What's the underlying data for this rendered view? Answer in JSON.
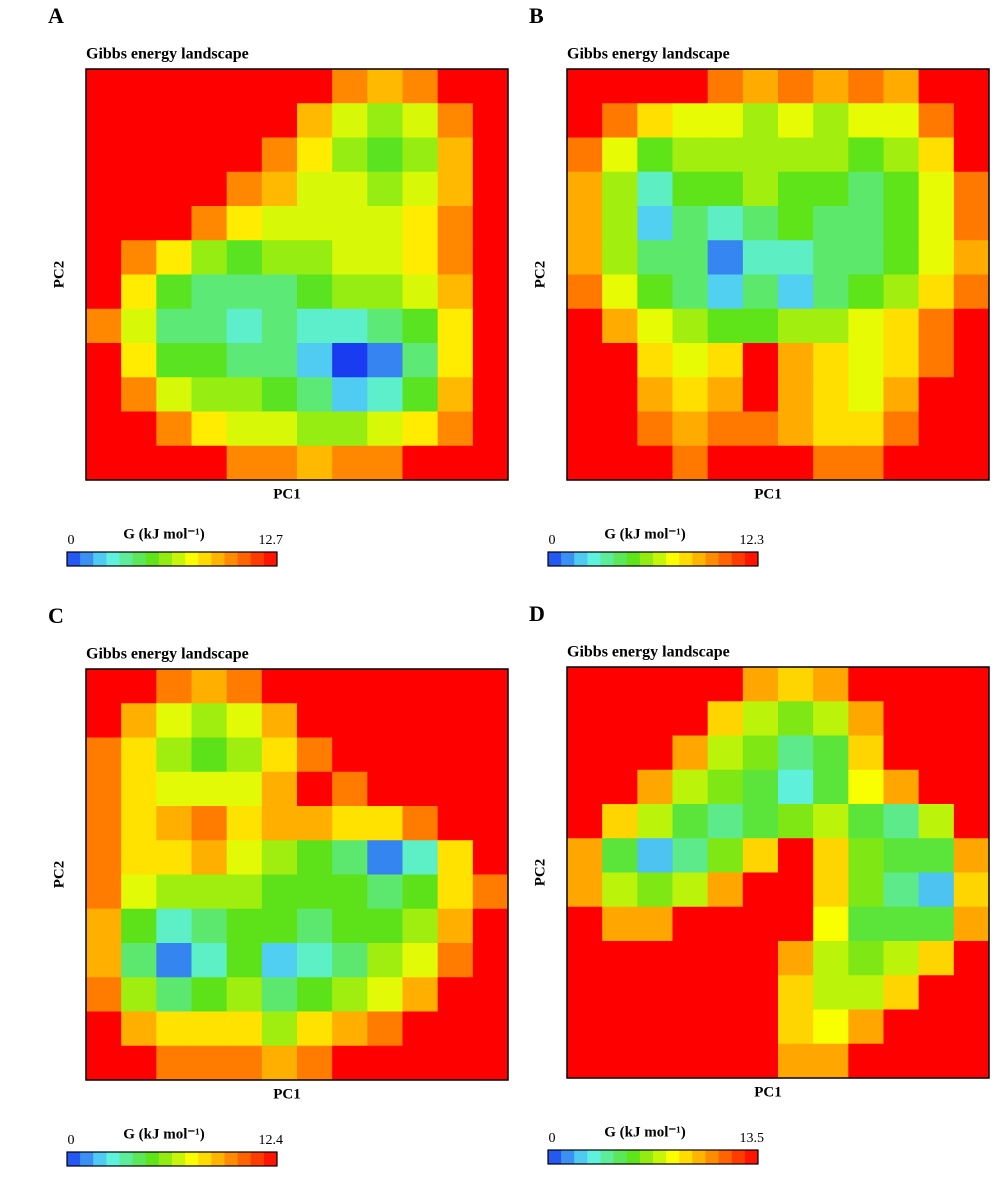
{
  "chart_data": [
    {
      "type": "heatmap",
      "panel_label": "A",
      "title": "Gibbs energy landscape",
      "x_label": "PC1",
      "y_label": "PC2",
      "colorbar_label": "G (kJ mol⁻¹)",
      "zlim": [
        0,
        12.7
      ],
      "zticks": [
        0,
        12.7
      ],
      "colormap": [
        "#1a3cf0",
        "#5ef2f2",
        "#5ae21a",
        "#ffff00",
        "#ff8000",
        "#ff0000"
      ],
      "z": [
        [
          12.7,
          12.7,
          12.7,
          12.7,
          12.7,
          12.7,
          12.7,
          10,
          9,
          10,
          12.7,
          12.7
        ],
        [
          12.7,
          12.7,
          12.7,
          12.7,
          12.7,
          12.7,
          9,
          7,
          6,
          7,
          10,
          12.7
        ],
        [
          12.7,
          12.7,
          12.7,
          12.7,
          12.7,
          10,
          8,
          6,
          5,
          6,
          9,
          12.7
        ],
        [
          12.7,
          12.7,
          12.7,
          12.7,
          10,
          9,
          7,
          7,
          6,
          7,
          9,
          12.7
        ],
        [
          12.7,
          12.7,
          12.7,
          10,
          8,
          7,
          7,
          7,
          7,
          8,
          10,
          12.7
        ],
        [
          12.7,
          10,
          8,
          6,
          5,
          6,
          6,
          7,
          7,
          8,
          10,
          12.7
        ],
        [
          12.7,
          8,
          5,
          4,
          4,
          4,
          5,
          6,
          6,
          7,
          9,
          12.7
        ],
        [
          10,
          7,
          4,
          4,
          3,
          4,
          3,
          3,
          4,
          5,
          8,
          12.7
        ],
        [
          12.7,
          8,
          5,
          5,
          4,
          4,
          2,
          0,
          1,
          4,
          8,
          12.7
        ],
        [
          12.7,
          10,
          7,
          6,
          6,
          5,
          4,
          2,
          3,
          5,
          9,
          12.7
        ],
        [
          12.7,
          12.7,
          10,
          8,
          7,
          7,
          6,
          6,
          7,
          8,
          10,
          12.7
        ],
        [
          12.7,
          12.7,
          12.7,
          12.7,
          10,
          10,
          9,
          10,
          10,
          12.7,
          12.7,
          12.7
        ]
      ]
    },
    {
      "type": "heatmap",
      "panel_label": "B",
      "title": "Gibbs energy landscape",
      "x_label": "PC1",
      "y_label": "PC2",
      "colorbar_label": "G (kJ mol⁻¹)",
      "zlim": [
        0,
        12.3
      ],
      "zticks": [
        0,
        12.3
      ],
      "colormap": [
        "#1a3cf0",
        "#5ef2f2",
        "#5ae21a",
        "#ffff00",
        "#ff8000",
        "#ff0000"
      ],
      "z": [
        [
          12.3,
          12.3,
          12.3,
          12.3,
          10,
          9,
          10,
          9,
          10,
          9,
          12.3,
          12.3
        ],
        [
          12.3,
          10,
          8,
          7,
          7,
          6,
          7,
          6,
          7,
          7,
          10,
          12.3
        ],
        [
          10,
          7,
          5,
          6,
          6,
          6,
          6,
          6,
          5,
          6,
          8,
          12.3
        ],
        [
          9,
          6,
          3,
          5,
          5,
          6,
          5,
          5,
          4,
          5,
          7,
          10
        ],
        [
          9,
          6,
          2,
          4,
          3,
          4,
          5,
          4,
          4,
          5,
          7,
          10
        ],
        [
          9,
          6,
          4,
          4,
          1,
          3,
          3,
          4,
          4,
          5,
          7,
          9
        ],
        [
          10,
          7,
          5,
          4,
          2,
          4,
          2,
          4,
          5,
          6,
          8,
          10
        ],
        [
          12.3,
          9,
          7,
          6,
          5,
          5,
          6,
          6,
          7,
          8,
          10,
          12.3
        ],
        [
          12.3,
          12.3,
          8,
          7,
          8,
          12.3,
          9,
          8,
          7,
          8,
          10,
          12.3
        ],
        [
          12.3,
          12.3,
          9,
          8,
          9,
          12.3,
          9,
          8,
          7,
          9,
          12.3,
          12.3
        ],
        [
          12.3,
          12.3,
          10,
          9,
          10,
          10,
          9,
          8,
          8,
          10,
          12.3,
          12.3
        ],
        [
          12.3,
          12.3,
          12.3,
          10,
          12.3,
          12.3,
          12.3,
          10,
          10,
          12.3,
          12.3,
          12.3
        ]
      ]
    },
    {
      "type": "heatmap",
      "panel_label": "C",
      "title": "Gibbs energy landscape",
      "x_label": "PC1",
      "y_label": "PC2",
      "colorbar_label": "G (kJ mol⁻¹)",
      "zlim": [
        0,
        12.4
      ],
      "zticks": [
        0,
        12.4
      ],
      "colormap": [
        "#1a3cf0",
        "#5ef2f2",
        "#5ae21a",
        "#ffff00",
        "#ff8000",
        "#ff0000"
      ],
      "z": [
        [
          12.4,
          12.4,
          10,
          9,
          10,
          12.4,
          12.4,
          12.4,
          12.4,
          12.4,
          12.4,
          12.4
        ],
        [
          12.4,
          9,
          7,
          6,
          7,
          9,
          12.4,
          12.4,
          12.4,
          12.4,
          12.4,
          12.4
        ],
        [
          10,
          8,
          6,
          5,
          6,
          8,
          10,
          12.4,
          12.4,
          12.4,
          12.4,
          12.4
        ],
        [
          10,
          8,
          7,
          7,
          7,
          9,
          12.4,
          10,
          12.4,
          12.4,
          12.4,
          12.4
        ],
        [
          10,
          8,
          9,
          10,
          8,
          9,
          9,
          8,
          8,
          10,
          12.4,
          12.4
        ],
        [
          10,
          8,
          8,
          9,
          7,
          6,
          5,
          4,
          1,
          3,
          8,
          12.4
        ],
        [
          10,
          7,
          6,
          6,
          6,
          5,
          5,
          5,
          4,
          5,
          8,
          10
        ],
        [
          9,
          5,
          3,
          4,
          5,
          5,
          4,
          5,
          5,
          6,
          9,
          12.4
        ],
        [
          9,
          4,
          1,
          3,
          5,
          2,
          3,
          4,
          6,
          7,
          10,
          12.4
        ],
        [
          10,
          6,
          4,
          5,
          6,
          4,
          5,
          6,
          7,
          9,
          12.4,
          12.4
        ],
        [
          12.4,
          9,
          8,
          8,
          8,
          6,
          8,
          9,
          10,
          12.4,
          12.4,
          12.4
        ],
        [
          12.4,
          12.4,
          10,
          10,
          10,
          9,
          10,
          12.4,
          12.4,
          12.4,
          12.4,
          12.4
        ]
      ]
    },
    {
      "type": "heatmap",
      "panel_label": "D",
      "title": "Gibbs energy landscape",
      "x_label": "PC1",
      "y_label": "PC2",
      "colorbar_label": "G (kJ mol⁻¹)",
      "zlim": [
        0,
        13.5
      ],
      "zticks": [
        0,
        13.5
      ],
      "colormap": [
        "#1a3cf0",
        "#5ef2f2",
        "#5ae21a",
        "#ffff00",
        "#ff8000",
        "#ff0000"
      ],
      "z": [
        [
          13.5,
          13.5,
          13.5,
          13.5,
          13.5,
          10,
          9,
          10,
          13.5,
          13.5,
          13.5,
          13.5
        ],
        [
          13.5,
          13.5,
          13.5,
          13.5,
          9,
          7,
          6,
          7,
          10,
          13.5,
          13.5,
          13.5
        ],
        [
          13.5,
          13.5,
          13.5,
          10,
          7,
          6,
          4,
          5,
          9,
          13.5,
          13.5,
          13.5
        ],
        [
          13.5,
          13.5,
          10,
          7,
          6,
          5,
          3,
          5,
          8,
          10,
          13.5,
          13.5
        ],
        [
          13.5,
          9,
          7,
          5,
          4,
          5,
          6,
          7,
          5,
          4,
          7,
          13.5
        ],
        [
          10,
          5,
          2,
          4,
          6,
          9,
          13.5,
          9,
          6,
          5,
          5,
          10
        ],
        [
          10,
          7,
          6,
          7,
          10,
          13.5,
          13.5,
          9,
          6,
          4,
          2,
          9
        ],
        [
          13.5,
          10,
          10,
          13.5,
          13.5,
          13.5,
          13.5,
          8,
          5,
          5,
          5,
          10
        ],
        [
          13.5,
          13.5,
          13.5,
          13.5,
          13.5,
          13.5,
          10,
          7,
          6,
          7,
          9,
          13.5
        ],
        [
          13.5,
          13.5,
          13.5,
          13.5,
          13.5,
          13.5,
          9,
          7,
          7,
          9,
          13.5,
          13.5
        ],
        [
          13.5,
          13.5,
          13.5,
          13.5,
          13.5,
          13.5,
          9,
          8,
          10,
          13.5,
          13.5,
          13.5
        ],
        [
          13.5,
          13.5,
          13.5,
          13.5,
          13.5,
          13.5,
          10,
          10,
          13.5,
          13.5,
          13.5,
          13.5
        ]
      ]
    }
  ]
}
